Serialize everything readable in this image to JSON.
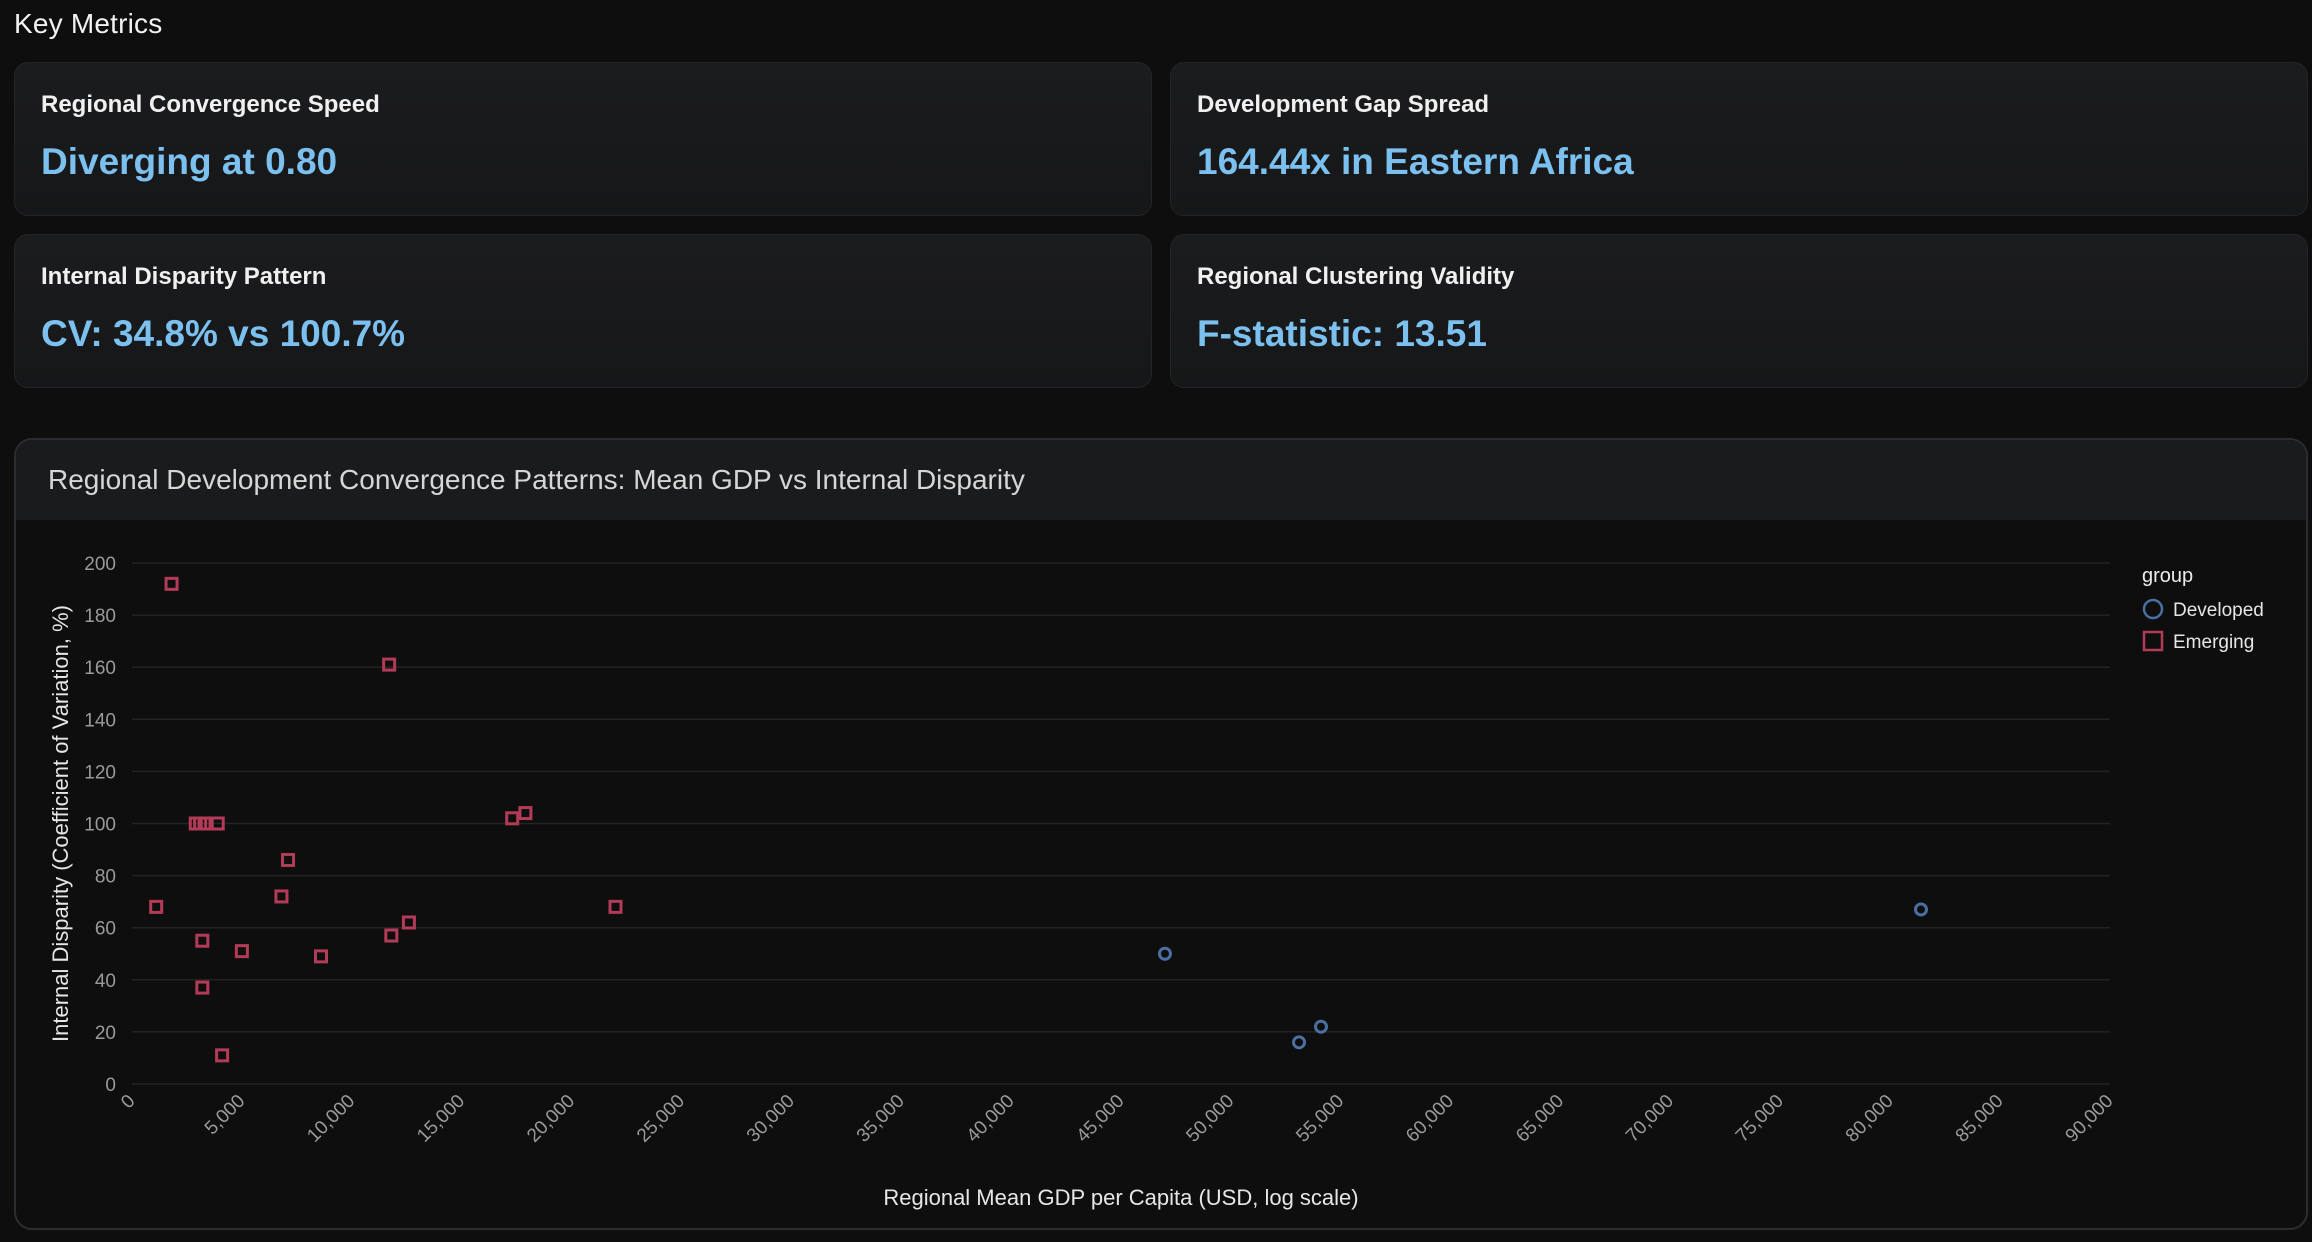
{
  "page": {
    "section_title": "Key Metrics"
  },
  "metrics": [
    {
      "label": "Regional Convergence Speed",
      "value": "Diverging at 0.80"
    },
    {
      "label": "Development Gap Spread",
      "value": "164.44x in Eastern Africa"
    },
    {
      "label": "Internal Disparity Pattern",
      "value": "CV: 34.8% vs 100.7%"
    },
    {
      "label": "Regional Clustering Validity",
      "value": "F-statistic: 13.51"
    }
  ],
  "colors": {
    "accent_value": "#7cc0ef",
    "developed": "#4a6fa0",
    "emerging": "#b33b57",
    "grid": "#222326",
    "axis_text": "#9a9a9a"
  },
  "chart_data": {
    "type": "scatter",
    "title": "Regional Development Convergence Patterns: Mean GDP vs Internal Disparity",
    "xlabel": "Regional Mean GDP per Capita (USD, log scale)",
    "ylabel": "Internal Disparity (Coefficient of Variation, %)",
    "xlim": [
      0,
      90000
    ],
    "ylim": [
      0,
      200
    ],
    "x_ticks": [
      "0",
      "5,000",
      "10,000",
      "15,000",
      "20,000",
      "25,000",
      "30,000",
      "35,000",
      "40,000",
      "45,000",
      "50,000",
      "55,000",
      "60,000",
      "65,000",
      "70,000",
      "75,000",
      "80,000",
      "85,000",
      "90,000"
    ],
    "y_ticks": [
      "0",
      "20",
      "40",
      "60",
      "80",
      "100",
      "120",
      "140",
      "160",
      "180",
      "200"
    ],
    "grid": true,
    "legend_title": "group",
    "legend_position": "top-right",
    "series": [
      {
        "name": "Developed",
        "marker": "circle",
        "points": [
          {
            "x": 47000,
            "y": 50
          },
          {
            "x": 53100,
            "y": 16
          },
          {
            "x": 54100,
            "y": 22
          },
          {
            "x": 81400,
            "y": 67
          }
        ]
      },
      {
        "name": "Emerging",
        "marker": "square",
        "points": [
          {
            "x": 1100,
            "y": 68
          },
          {
            "x": 1800,
            "y": 192
          },
          {
            "x": 2900,
            "y": 100
          },
          {
            "x": 3100,
            "y": 100
          },
          {
            "x": 3300,
            "y": 100
          },
          {
            "x": 3200,
            "y": 55
          },
          {
            "x": 3200,
            "y": 37
          },
          {
            "x": 3900,
            "y": 100
          },
          {
            "x": 4100,
            "y": 11
          },
          {
            "x": 5000,
            "y": 51
          },
          {
            "x": 6800,
            "y": 72
          },
          {
            "x": 7100,
            "y": 86
          },
          {
            "x": 8600,
            "y": 49
          },
          {
            "x": 11700,
            "y": 161
          },
          {
            "x": 11800,
            "y": 57
          },
          {
            "x": 12600,
            "y": 62
          },
          {
            "x": 17300,
            "y": 102
          },
          {
            "x": 17900,
            "y": 104
          },
          {
            "x": 22000,
            "y": 68
          }
        ]
      }
    ]
  }
}
